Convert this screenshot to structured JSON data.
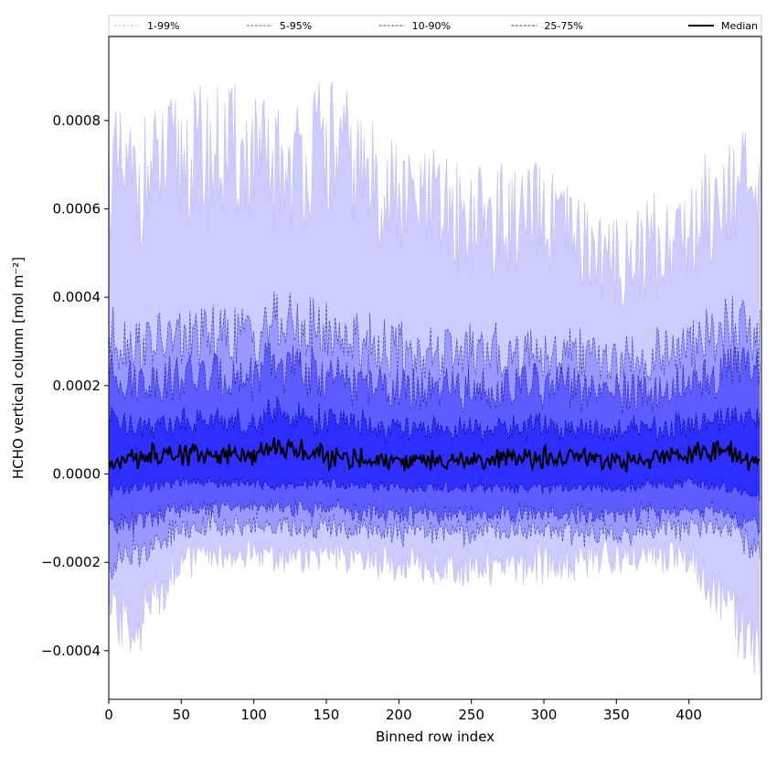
{
  "chart_data": {
    "type": "area",
    "xlabel": "Binned row index",
    "ylabel": "HCHO vertical column [mol m⁻²]",
    "xlim": [
      0,
      450
    ],
    "ylim": [
      -0.00051,
      0.00099
    ],
    "xticks": [
      0,
      50,
      100,
      150,
      200,
      250,
      300,
      350,
      400
    ],
    "xtick_labels": [
      "0",
      "50",
      "100",
      "150",
      "200",
      "250",
      "300",
      "350",
      "400"
    ],
    "yticks": [
      -0.0004,
      -0.0002,
      0.0,
      0.0002,
      0.0004,
      0.0006,
      0.0008
    ],
    "ytick_labels": [
      "−0.0004",
      "−0.0002",
      "0.0000",
      "0.0002",
      "0.0004",
      "0.0006",
      "0.0008"
    ],
    "grid": false,
    "legend_position": "top",
    "x": [
      0,
      20,
      50,
      100,
      110,
      150,
      200,
      250,
      300,
      350,
      400,
      430,
      449
    ],
    "bands": [
      {
        "name": "1-99%",
        "color": "#ccccff",
        "line_color": "#b0b0e0",
        "lower": [
          -0.00032,
          -0.00034,
          -0.00019,
          -0.00018,
          -0.00018,
          -0.00019,
          -0.0002,
          -0.00021,
          -0.0002,
          -0.00019,
          -0.00018,
          -0.00032,
          -0.00042
        ],
        "upper": [
          0.00068,
          0.00066,
          0.00072,
          0.00072,
          0.00068,
          0.00074,
          0.00062,
          0.00058,
          0.00057,
          0.00048,
          0.00055,
          0.00068,
          0.00058
        ]
      },
      {
        "name": "5-95%",
        "color": "#9999ff",
        "line_color": "#3333aa",
        "lower": [
          -0.0002,
          -0.00018,
          -0.00012,
          -0.00011,
          -0.00012,
          -0.00012,
          -0.00013,
          -0.00013,
          -0.00013,
          -0.00013,
          -0.00012,
          -0.00012,
          -0.00019
        ],
        "upper": [
          0.00032,
          0.00029,
          0.00031,
          0.00031,
          0.00034,
          0.00032,
          0.00028,
          0.00027,
          0.00028,
          0.00025,
          0.00028,
          0.00034,
          0.00031
        ]
      },
      {
        "name": "10-90%",
        "color": "#5c5cff",
        "line_color": "#1a1a99",
        "lower": [
          -0.00012,
          -0.00011,
          -8e-05,
          -7e-05,
          -8e-05,
          -8e-05,
          -9e-05,
          -9e-05,
          -9e-05,
          -9e-05,
          -8e-05,
          -9e-05,
          -0.00013
        ],
        "upper": [
          0.00023,
          0.00021,
          0.00022,
          0.00022,
          0.00025,
          0.00022,
          0.00019,
          0.00019,
          0.0002,
          0.00018,
          0.0002,
          0.00025,
          0.00023
        ]
      },
      {
        "name": "25-75%",
        "color": "#2e2eff",
        "line_color": "#000080",
        "lower": [
          -4e-05,
          -3e-05,
          -2e-05,
          -2e-05,
          -3e-05,
          -2e-05,
          -3e-05,
          -3e-05,
          -3e-05,
          -3e-05,
          -2e-05,
          -3e-05,
          -5e-05
        ],
        "upper": [
          0.00012,
          0.00011,
          0.00012,
          0.00012,
          0.00014,
          0.00012,
          0.0001,
          0.0001,
          0.00011,
          0.0001,
          0.00011,
          0.00013,
          0.00012
        ]
      }
    ],
    "series": [
      {
        "name": "Median",
        "color": "#000000",
        "values": [
          3e-05,
          4e-05,
          5e-05,
          4e-05,
          6e-05,
          4e-05,
          3e-05,
          3e-05,
          4e-05,
          3e-05,
          4e-05,
          5e-05,
          2e-05
        ]
      }
    ]
  }
}
